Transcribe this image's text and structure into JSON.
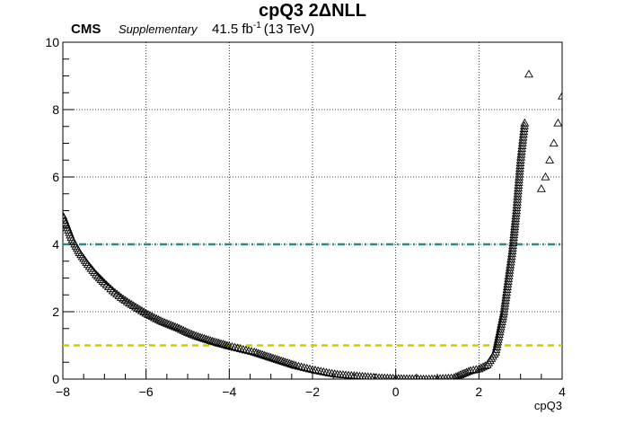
{
  "chart_data": {
    "type": "scatter",
    "title": "cpQ3 2ΔNLL",
    "experiment": "CMS",
    "label": "Supplementary",
    "lumi_text": "41.5 fb",
    "lumi_sup": "-1",
    "energy_text": "(13 TeV)",
    "xlabel": "cpQ3",
    "ylabel": "",
    "xlim": [
      -8,
      4
    ],
    "ylim": [
      0,
      10
    ],
    "xticks": [
      -8,
      -6,
      -4,
      -2,
      0,
      2,
      4
    ],
    "yticks": [
      0,
      2,
      4,
      6,
      8,
      10
    ],
    "xtick_labels": [
      "−8",
      "−6",
      "−4",
      "−2",
      "0",
      "2",
      "4"
    ],
    "ytick_labels": [
      "0",
      "2",
      "4",
      "6",
      "8",
      "10"
    ],
    "grid": true,
    "marker": "open-triangle",
    "reference_lines": [
      {
        "y": 4,
        "color": "#2a8a8a",
        "style": "dash-dot"
      },
      {
        "y": 1,
        "color": "#cccc00",
        "style": "dashed"
      }
    ],
    "curve_points": [
      [
        -8.0,
        4.85
      ],
      [
        -7.8,
        4.2
      ],
      [
        -7.6,
        3.75
      ],
      [
        -7.4,
        3.4
      ],
      [
        -7.2,
        3.1
      ],
      [
        -7.0,
        2.85
      ],
      [
        -6.8,
        2.62
      ],
      [
        -6.6,
        2.42
      ],
      [
        -6.4,
        2.25
      ],
      [
        -6.2,
        2.1
      ],
      [
        -6.0,
        1.95
      ],
      [
        -5.8,
        1.82
      ],
      [
        -5.6,
        1.7
      ],
      [
        -5.4,
        1.6
      ],
      [
        -5.2,
        1.5
      ],
      [
        -5.0,
        1.38
      ],
      [
        -4.8,
        1.28
      ],
      [
        -4.6,
        1.2
      ],
      [
        -4.4,
        1.12
      ],
      [
        -4.2,
        1.05
      ],
      [
        -4.0,
        0.98
      ],
      [
        -3.8,
        0.92
      ],
      [
        -3.6,
        0.86
      ],
      [
        -3.4,
        0.8
      ],
      [
        -3.2,
        0.72
      ],
      [
        -3.0,
        0.64
      ],
      [
        -2.8,
        0.56
      ],
      [
        -2.6,
        0.48
      ],
      [
        -2.4,
        0.4
      ],
      [
        -2.2,
        0.34
      ],
      [
        -2.0,
        0.28
      ],
      [
        -1.8,
        0.23
      ],
      [
        -1.6,
        0.18
      ],
      [
        -1.4,
        0.14
      ],
      [
        -1.2,
        0.12
      ],
      [
        -1.0,
        0.1
      ],
      [
        -0.8,
        0.08
      ],
      [
        -0.6,
        0.06
      ],
      [
        -0.4,
        0.04
      ],
      [
        -0.2,
        0.03
      ],
      [
        0.0,
        0.02
      ],
      [
        0.2,
        0.01
      ],
      [
        0.4,
        0.01
      ],
      [
        0.6,
        0.0
      ],
      [
        0.8,
        0.0
      ],
      [
        1.0,
        0.01
      ],
      [
        1.2,
        0.02
      ],
      [
        1.4,
        0.04
      ],
      [
        1.6,
        0.15
      ],
      [
        1.8,
        0.25
      ],
      [
        2.0,
        0.3
      ],
      [
        2.2,
        0.42
      ],
      [
        2.4,
        0.8
      ],
      [
        2.5,
        1.4
      ],
      [
        2.6,
        2.0
      ],
      [
        2.7,
        2.9
      ],
      [
        2.8,
        3.8
      ],
      [
        2.9,
        5.0
      ],
      [
        3.0,
        6.5
      ],
      [
        3.1,
        7.6
      ]
    ],
    "outlier_points": [
      [
        3.2,
        9.05
      ],
      [
        3.5,
        5.65
      ],
      [
        3.6,
        6.0
      ],
      [
        3.7,
        6.5
      ],
      [
        3.8,
        7.0
      ],
      [
        3.9,
        7.6
      ],
      [
        4.0,
        8.4
      ]
    ]
  }
}
